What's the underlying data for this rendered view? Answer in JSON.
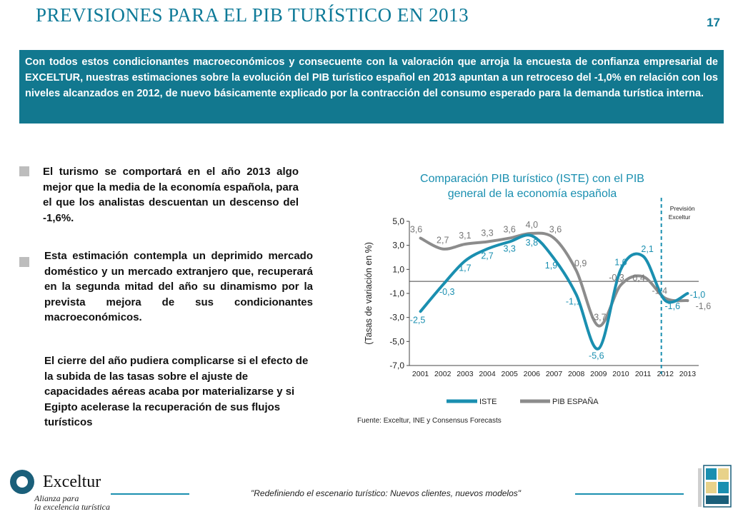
{
  "header": {
    "title": "PREVISIONES PARA EL PIB TURÍSTICO EN 2013",
    "page_number": "17"
  },
  "intro": "Con todos estos condicionantes macroeconómicos y consecuente con la valoración que arroja la encuesta de confianza empresarial de EXCELTUR, nuestras estimaciones sobre la evolución del PIB turístico español en 2013 apuntan a un retroceso del -1,0% en relación con los niveles alcanzados en 2012, de nuevo básicamente explicado por la contracción del consumo esperado para la demanda turística interna.",
  "bullets": [
    "El turismo se comportará en el año 2013 algo mejor que la media de la economía española, para el que los analistas descuentan un descenso del -1,6%.",
    "Esta estimación contempla un deprimido mercado doméstico y un mercado extranjero que, recuperará en la segunda mitad del año su dinamismo por la prevista mejora de sus condicionantes macroeconómicos."
  ],
  "closing": "El cierre del año pudiera complicarse si el efecto de la subida de las tasas sobre el ajuste de capacidades aéreas acaba por materializarse y si Egipto acelerase la recuperación de sus flujos turísticos",
  "chart_data": {
    "type": "line",
    "title_line1": "Comparación PIB turístico (ISTE) con el  PIB",
    "title_line2": "general de la economía española",
    "ylabel": "(Tasas de variación en %)",
    "x": [
      "2001",
      "2002",
      "2003",
      "2004",
      "2005",
      "2006",
      "2007",
      "2008",
      "2009",
      "2010",
      "2011",
      "2012",
      "2013"
    ],
    "y_ticks": [
      "5,0",
      "3,0",
      "1,0",
      "-1,0",
      "-3,0",
      "-5,0",
      "-7,0"
    ],
    "ylim": [
      -7,
      5
    ],
    "forecast_label_1": "Previsión",
    "forecast_label_2": "Exceltur",
    "forecast_from": "2012",
    "series": [
      {
        "name": "ISTE",
        "color": "#1a8fb0",
        "values": [
          -2.5,
          -0.3,
          1.7,
          2.7,
          3.3,
          3.8,
          1.9,
          -1.1,
          -5.6,
          1.0,
          2.1,
          -1.6,
          -1.0
        ],
        "labels": [
          "-2,5",
          "-0,3",
          "1,7",
          "2,7",
          "3,3",
          "3,8",
          "1,9",
          "-1,1",
          "-5,6",
          "1,0",
          "2,1",
          "-1,6",
          "-1,0"
        ]
      },
      {
        "name": "PIB ESPAÑA",
        "color": "#8c8c8c",
        "values": [
          3.6,
          2.7,
          3.1,
          3.3,
          3.6,
          4.0,
          3.6,
          0.9,
          -3.7,
          -0.3,
          0.4,
          -1.4,
          -1.6
        ],
        "labels": [
          "3,6",
          "2,7",
          "3,1",
          "3,3",
          "3,6",
          "4,0",
          "3,6",
          "0,9",
          "-3,7",
          "-0,3",
          "0,4",
          "-1,4",
          "-1,6"
        ]
      }
    ],
    "source": "Fuente:  Exceltur, INE y Consensus Forecasts"
  },
  "footer": {
    "tagline": "\"Redefiniendo el escenario turístico: Nuevos clientes, nuevos modelos\"",
    "logo_name": "Exceltur",
    "logo_tag_1": "Alianza para",
    "logo_tag_2": "la excelencia turística"
  }
}
